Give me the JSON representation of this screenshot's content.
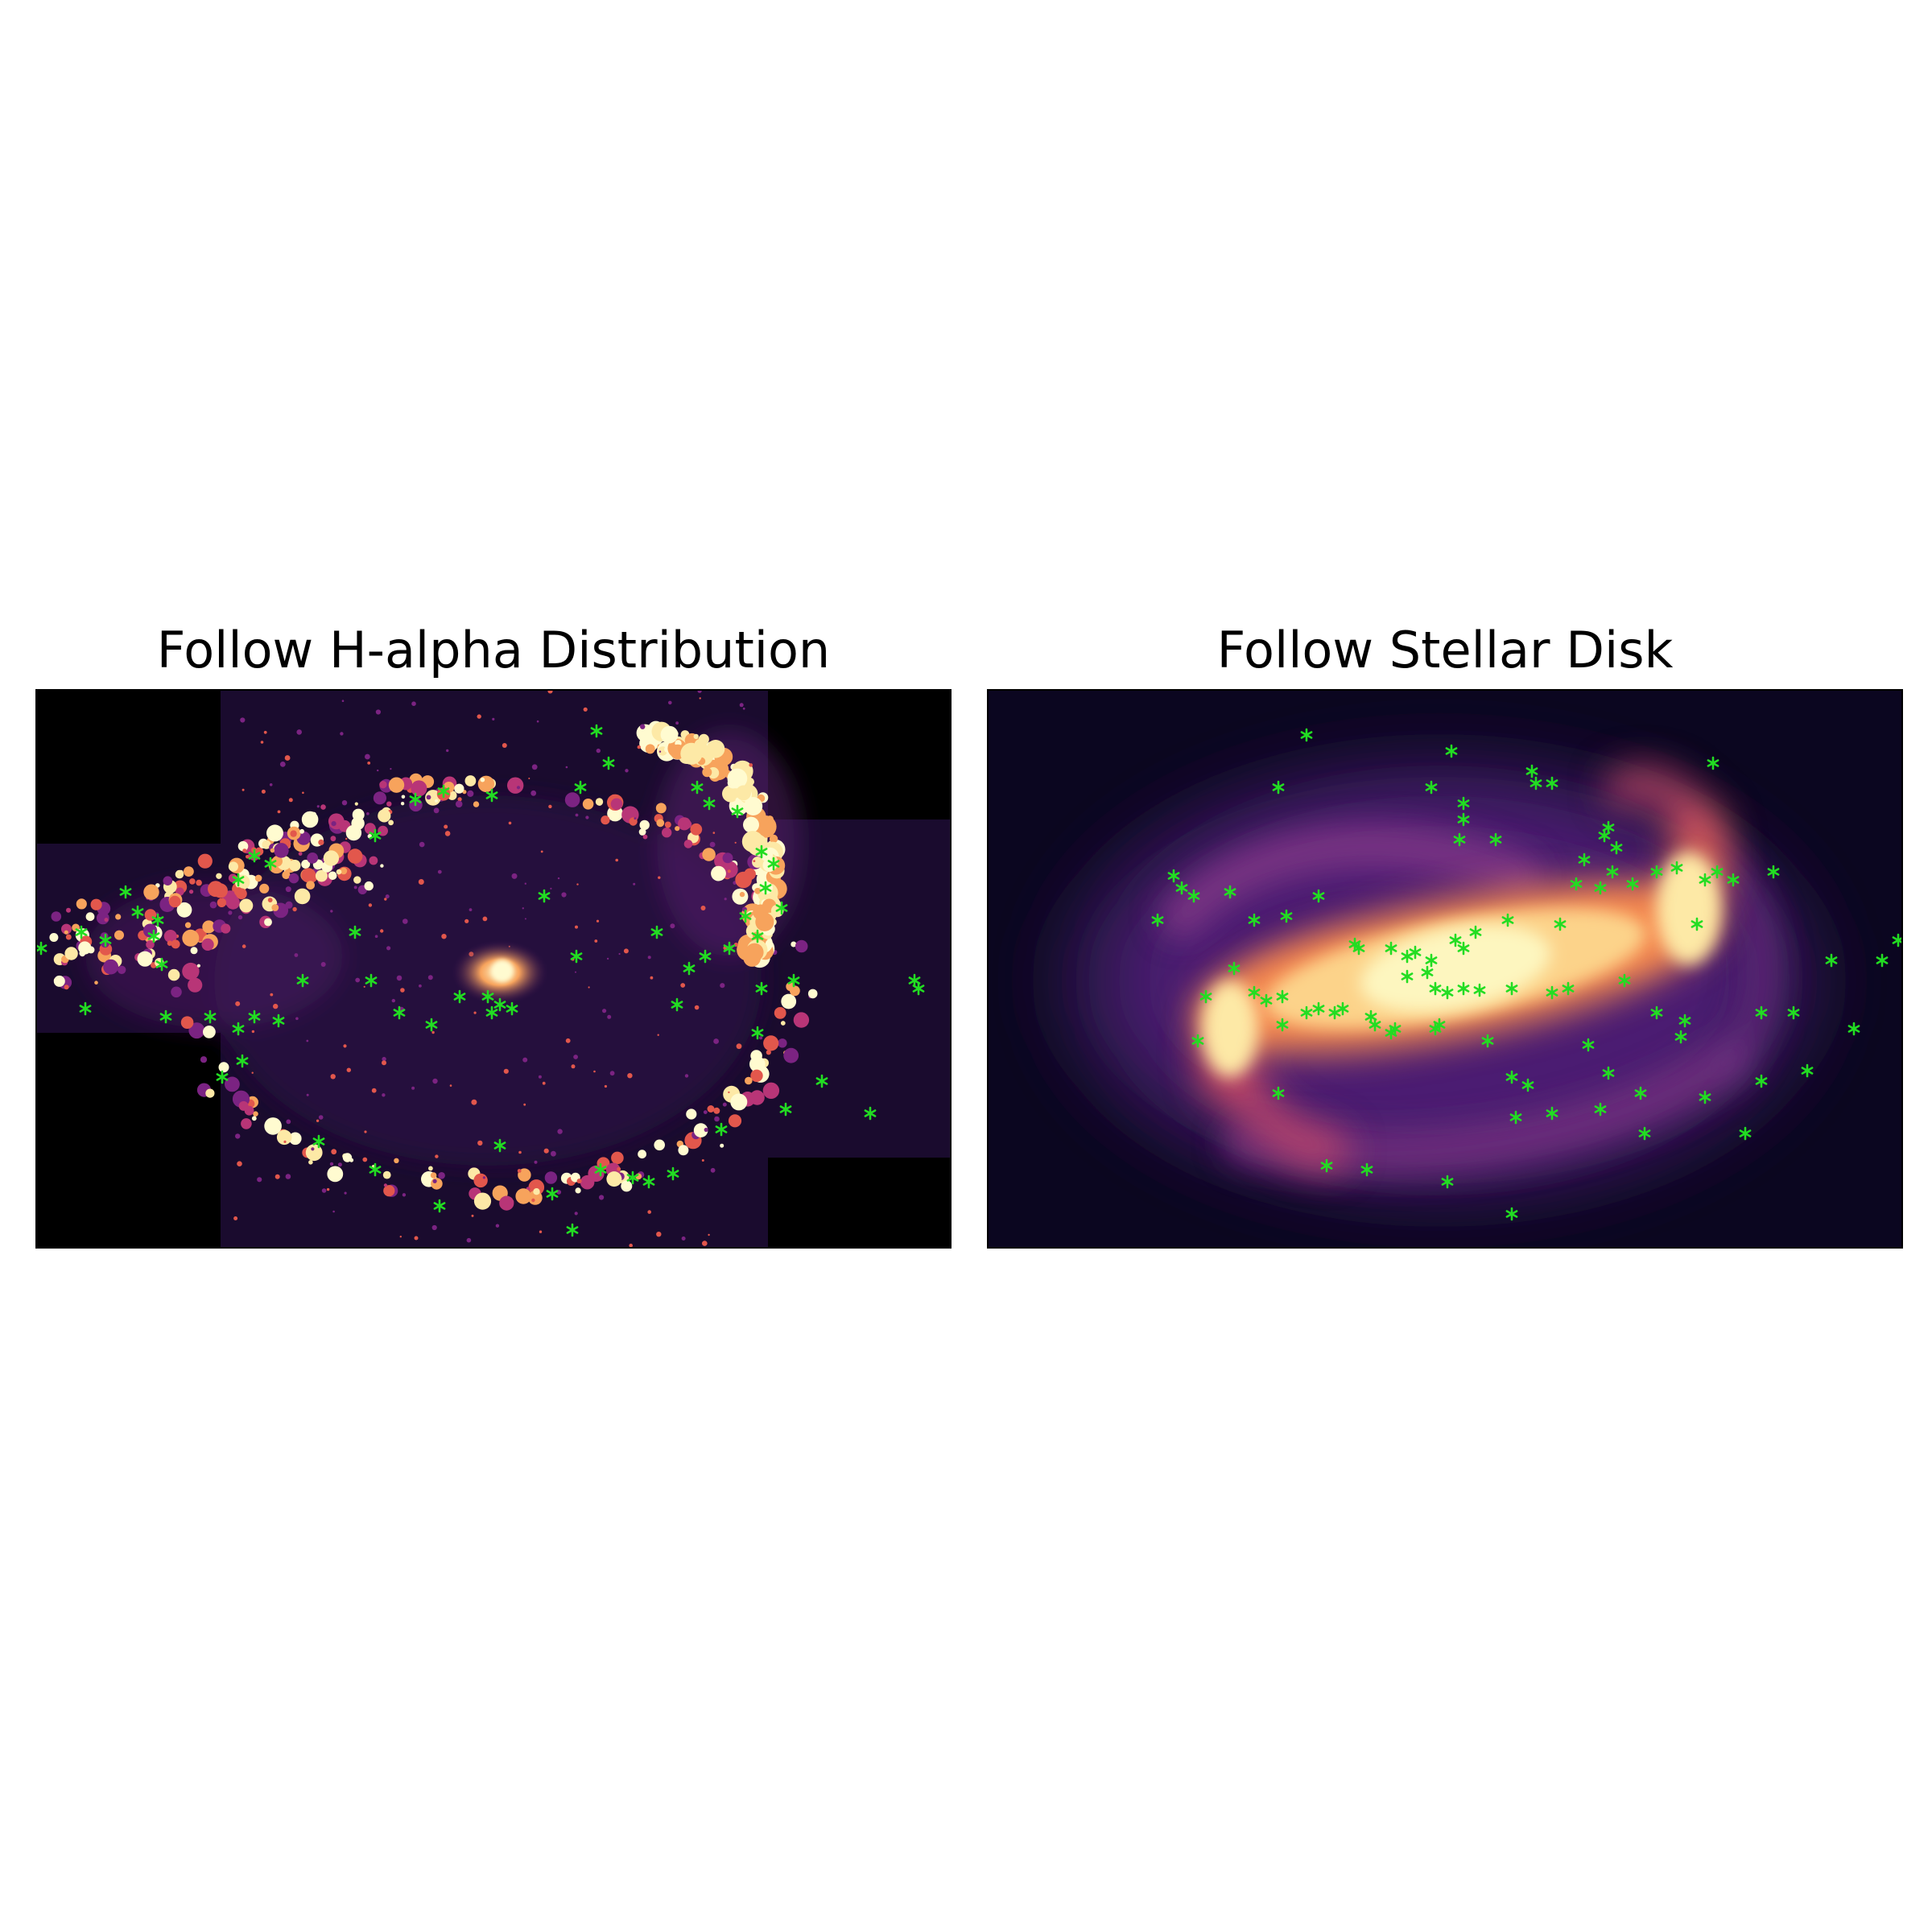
{
  "panels": [
    {
      "id": "halpha",
      "title": "Follow H-alpha Distribution",
      "image": "narrowband H-alpha emission map of a barred spiral galaxy, inferno/magma colormap, clumpy ring and spiral arms, mosaic footprint with black corners",
      "marker_color": "#22dd22"
    },
    {
      "id": "stellar",
      "title": "Follow Stellar Disk",
      "image": "smoothed stellar light map of the same galaxy, magma colormap, bright elongated bar with two arms and diffuse outer disk",
      "marker_color": "#22dd22"
    }
  ],
  "colors": {
    "marker": "#22dd22",
    "cmap_dark": "#0b0620",
    "cmap_mid": "#6a2c8c",
    "cmap_warm": "#f06a4a",
    "cmap_bright": "#fcf6b8"
  }
}
